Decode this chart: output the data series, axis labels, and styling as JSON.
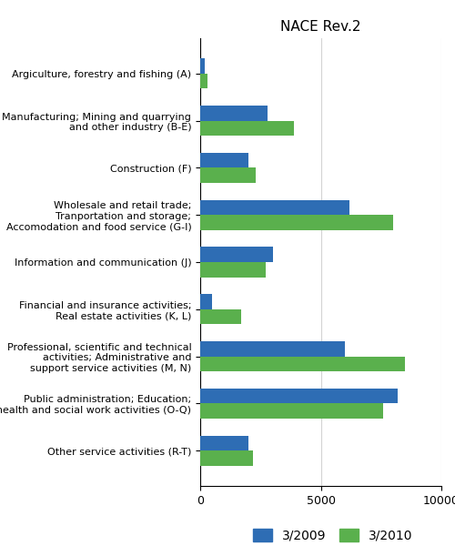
{
  "title": "NACE Rev.2",
  "categories": [
    "Argiculture, forestry and fishing (A)",
    "Manufacturing; Mining and quarrying\nand other industry (B-E)",
    "Construction (F)",
    "Wholesale and retail trade;\nTranportation and storage;\nAccomodation and food service (G-I)",
    "Information and communication (J)",
    "Financial and insurance activities;\nReal estate activities (K, L)",
    "Professional, scientific and technical\nactivities; Administrative and\nsupport service activities (M, N)",
    "Public administration; Education;\nHuman health and social work activities (O-Q)",
    "Other service activities (R-T)"
  ],
  "values_2009": [
    200,
    2800,
    2000,
    6200,
    3000,
    500,
    6000,
    8200,
    2000
  ],
  "values_2010": [
    300,
    3900,
    2300,
    8000,
    2700,
    1700,
    8500,
    7600,
    2200
  ],
  "color_2009": "#2e6db4",
  "color_2010": "#5ab04d",
  "legend_labels": [
    "3/2009",
    "3/2010"
  ],
  "xlim": [
    0,
    10000
  ],
  "xticks": [
    0,
    5000,
    10000
  ],
  "bar_height": 0.32,
  "title_fontsize": 11,
  "tick_fontsize": 9,
  "label_fontsize": 8.0,
  "legend_fontsize": 10
}
